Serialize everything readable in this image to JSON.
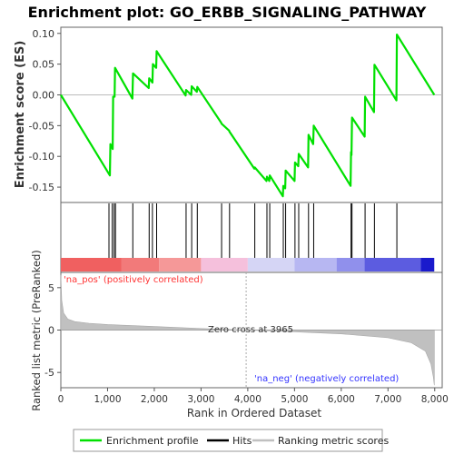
{
  "title": "Enrichment plot: GO_ERBB_SIGNALING_PATHWAY",
  "colors": {
    "es_line": "#00e000",
    "hits": "#000000",
    "metric": "#c0c0c0",
    "zero_line": "#bbbbbb",
    "pos_label": "#ff3333",
    "neg_label": "#3333ff",
    "title": "#000000"
  },
  "labels": {
    "na_pos": "'na_pos' (positively correlated)",
    "na_neg": "'na_neg' (negatively correlated)",
    "zero_cross": "Zero cross at 3965"
  },
  "legend": [
    {
      "name": "Enrichment profile",
      "color": "#00e000"
    },
    {
      "name": "Hits",
      "color": "#000000"
    },
    {
      "name": "Ranking metric scores",
      "color": "#c0c0c0"
    }
  ],
  "chart_data": [
    {
      "type": "line",
      "title": "Enrichment plot: GO_ERBB_SIGNALING_PATHWAY",
      "xlabel": "",
      "ylabel": "Enrichment score (ES)",
      "xlim": [
        0,
        8160
      ],
      "ylim": [
        -0.175,
        0.11
      ],
      "yticks": [
        0.1,
        0.05,
        0.0,
        -0.05,
        -0.1,
        -0.15
      ],
      "ytick_labels": [
        "0.10",
        "0.05",
        "0.00",
        "-0.05",
        "-0.10",
        "-0.15"
      ],
      "series": [
        {
          "values": [
            [
              0,
              0.0
            ],
            [
              1050,
              -0.131
            ],
            [
              1060,
              -0.08
            ],
            [
              1110,
              -0.088
            ],
            [
              1120,
              -0.003
            ],
            [
              1150,
              -0.003
            ],
            [
              1160,
              0.044
            ],
            [
              1530,
              -0.006
            ],
            [
              1545,
              0.035
            ],
            [
              1880,
              0.011
            ],
            [
              1890,
              0.027
            ],
            [
              1960,
              0.02
            ],
            [
              1970,
              0.05
            ],
            [
              2040,
              0.044
            ],
            [
              2050,
              0.071
            ],
            [
              2670,
              -0.001
            ],
            [
              2680,
              0.008
            ],
            [
              2790,
              0.0
            ],
            [
              2800,
              0.014
            ],
            [
              2910,
              0.005
            ],
            [
              2920,
              0.013
            ],
            [
              3430,
              -0.045
            ],
            [
              3440,
              -0.047
            ],
            [
              3600,
              -0.058
            ],
            [
              3610,
              -0.06
            ],
            [
              4140,
              -0.12
            ],
            [
              4150,
              -0.118
            ],
            [
              4400,
              -0.14
            ],
            [
              4410,
              -0.133
            ],
            [
              4460,
              -0.14
            ],
            [
              4470,
              -0.131
            ],
            [
              4750,
              -0.165
            ],
            [
              4760,
              -0.148
            ],
            [
              4800,
              -0.152
            ],
            [
              4810,
              -0.123
            ],
            [
              5000,
              -0.14
            ],
            [
              5010,
              -0.11
            ],
            [
              5080,
              -0.116
            ],
            [
              5090,
              -0.096
            ],
            [
              5290,
              -0.118
            ],
            [
              5300,
              -0.065
            ],
            [
              5400,
              -0.08
            ],
            [
              5410,
              -0.05
            ],
            [
              6200,
              -0.148
            ],
            [
              6210,
              -0.093
            ],
            [
              6220,
              -0.098
            ],
            [
              6230,
              -0.037
            ],
            [
              6500,
              -0.068
            ],
            [
              6510,
              -0.003
            ],
            [
              6700,
              -0.028
            ],
            [
              6710,
              0.049
            ],
            [
              7180,
              -0.009
            ],
            [
              7190,
              0.098
            ],
            [
              7990,
              0.0
            ]
          ]
        }
      ]
    },
    {
      "type": "bar",
      "title": "",
      "xlabel": "",
      "ylabel": "",
      "hits": [
        1030,
        1100,
        1140,
        1170,
        1540,
        1890,
        1960,
        2050,
        2680,
        2800,
        2920,
        3440,
        3610,
        4150,
        4410,
        4470,
        4760,
        4810,
        5010,
        5090,
        5300,
        5410,
        6210,
        6230,
        6510,
        6710,
        7190
      ],
      "color_band": [
        {
          "from": 0,
          "to": 1300,
          "color": "#f06060"
        },
        {
          "from": 1300,
          "to": 2100,
          "color": "#f27a7a"
        },
        {
          "from": 2100,
          "to": 3000,
          "color": "#f59898"
        },
        {
          "from": 3000,
          "to": 4000,
          "color": "#f5c0dc"
        },
        {
          "from": 4000,
          "to": 5000,
          "color": "#d5d5f5"
        },
        {
          "from": 5000,
          "to": 5900,
          "color": "#b7b7f2"
        },
        {
          "from": 5900,
          "to": 6500,
          "color": "#9090ec"
        },
        {
          "from": 6500,
          "to": 7700,
          "color": "#5c5ce0"
        },
        {
          "from": 7700,
          "to": 7990,
          "color": "#1a1acc"
        }
      ]
    },
    {
      "type": "area",
      "title": "",
      "xlabel": "Rank in Ordered Dataset",
      "ylabel": "Ranked list metric (PreRanked)",
      "xlim": [
        0,
        8160
      ],
      "ylim": [
        -6.8,
        6.8
      ],
      "xticks": [
        0,
        1000,
        2000,
        3000,
        4000,
        5000,
        6000,
        7000,
        8000
      ],
      "xtick_labels": [
        "0",
        "1,000",
        "2,000",
        "3,000",
        "4,000",
        "5,000",
        "6,000",
        "7,000",
        "8,000"
      ],
      "yticks": [
        5,
        0,
        -5
      ],
      "ytick_labels": [
        "5",
        "0",
        "-5"
      ],
      "zero_cross": 3965,
      "values": [
        [
          0,
          6.5
        ],
        [
          20,
          3.5
        ],
        [
          60,
          2.0
        ],
        [
          150,
          1.3
        ],
        [
          300,
          1.0
        ],
        [
          600,
          0.8
        ],
        [
          1000,
          0.65
        ],
        [
          2000,
          0.42
        ],
        [
          3000,
          0.18
        ],
        [
          3965,
          0.0
        ],
        [
          5000,
          -0.2
        ],
        [
          6000,
          -0.45
        ],
        [
          7000,
          -0.9
        ],
        [
          7500,
          -1.5
        ],
        [
          7800,
          -2.5
        ],
        [
          7920,
          -4.0
        ],
        [
          7970,
          -5.5
        ],
        [
          7990,
          -6.5
        ]
      ]
    }
  ]
}
